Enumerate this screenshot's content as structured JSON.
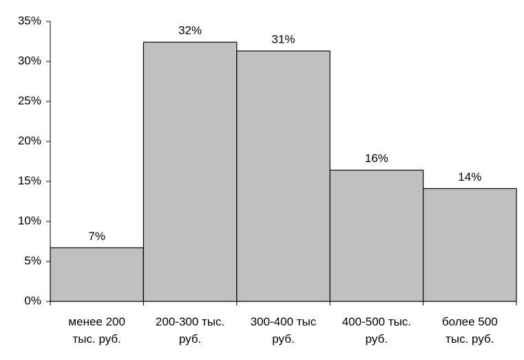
{
  "chart_data": {
    "type": "bar",
    "categories": [
      "менее 200\nтыс. руб.",
      "200-300 тыс.\nруб.",
      "300-400 тыс\nруб.",
      "400-500 тыс.\nруб.",
      "более 500\nтыс. руб."
    ],
    "values": [
      6.7,
      32.4,
      31.3,
      16.4,
      14.1
    ],
    "value_labels": [
      "7%",
      "32%",
      "31%",
      "16%",
      "14%"
    ],
    "color": "#c0c0c0",
    "ylim": [
      0,
      35
    ],
    "yticks": [
      {
        "value": 0,
        "label": "0%"
      },
      {
        "value": 5,
        "label": "5%"
      },
      {
        "value": 10,
        "label": "10%"
      },
      {
        "value": 15,
        "label": "15%"
      },
      {
        "value": 20,
        "label": "20%"
      },
      {
        "value": 25,
        "label": "25%"
      },
      {
        "value": 30,
        "label": "30%"
      },
      {
        "value": 35,
        "label": "35%"
      }
    ],
    "grid": false
  }
}
